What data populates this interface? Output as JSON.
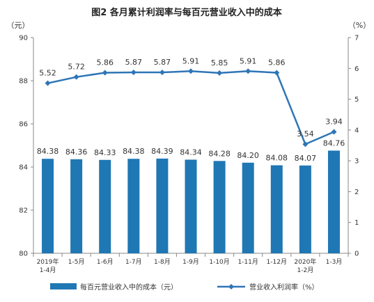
{
  "chart_data": {
    "type": "bar+line",
    "title": "图2 各月累计利润率与每百元营业收入中的成本",
    "left_unit": "（元）",
    "right_unit": "（%）",
    "categories": [
      [
        "2019年",
        "1-4月"
      ],
      [
        "1-5月"
      ],
      [
        "1-6月"
      ],
      [
        "1-7月"
      ],
      [
        "1-8月"
      ],
      [
        "1-9月"
      ],
      [
        "1-10月"
      ],
      [
        "1-11月"
      ],
      [
        "1-12月"
      ],
      [
        "2020年",
        "1-2月"
      ],
      [
        "1-3月"
      ]
    ],
    "left_axis": {
      "ylim": [
        80,
        90
      ],
      "ticks": [
        "80",
        "82",
        "84",
        "86",
        "88",
        "90"
      ]
    },
    "right_axis": {
      "ylim": [
        0,
        7
      ],
      "ticks": [
        "0",
        "1",
        "2",
        "3",
        "4",
        "5",
        "6",
        "7"
      ]
    },
    "series": [
      {
        "name": "每百元营业收入中的成本（元）",
        "type": "bar",
        "axis": "left",
        "color": "#1f77b4",
        "values": [
          84.38,
          84.36,
          84.33,
          84.38,
          84.39,
          84.34,
          84.28,
          84.2,
          84.08,
          84.07,
          84.76
        ],
        "labels": [
          "84.38",
          "84.36",
          "84.33",
          "84.38",
          "84.39",
          "84.34",
          "84.28",
          "84.20",
          "84.08",
          "84.07",
          "84.76"
        ]
      },
      {
        "name": "营业收入利润率（%）",
        "type": "line",
        "axis": "right",
        "color": "#2e75b6",
        "values": [
          5.52,
          5.72,
          5.86,
          5.87,
          5.87,
          5.91,
          5.85,
          5.91,
          5.86,
          3.54,
          3.94
        ],
        "labels": [
          "5.52",
          "5.72",
          "5.86",
          "5.87",
          "5.87",
          "5.91",
          "5.85",
          "5.91",
          "5.86",
          "3.54",
          "3.94"
        ]
      }
    ],
    "legend_position": "bottom",
    "grid": false
  }
}
